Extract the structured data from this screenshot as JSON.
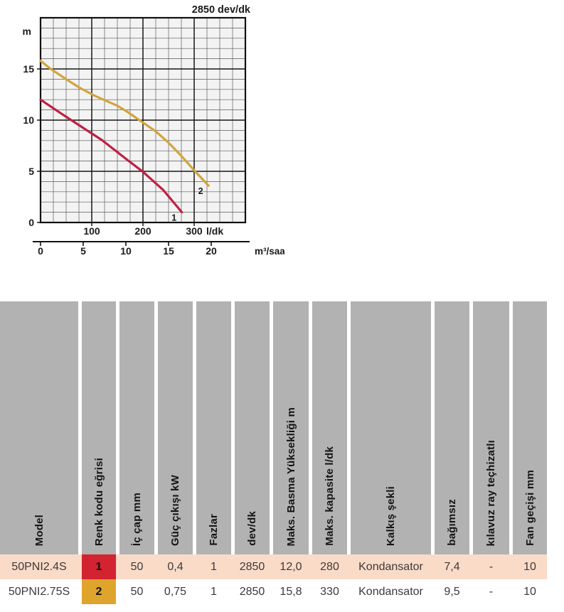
{
  "chart_data": {
    "type": "line",
    "title": "2850 dev/dk",
    "y_axis": {
      "unit": "m",
      "ticks": [
        0,
        5,
        10,
        15
      ],
      "range": [
        0,
        20
      ],
      "minor_step_m": 1,
      "major_step_m": 5
    },
    "x_axis_primary": {
      "unit": "l/dk",
      "ticks": [
        100,
        200,
        300
      ],
      "range_ldk": [
        0,
        400
      ],
      "minor_step_ldk": 25,
      "major_step_ldk": 100
    },
    "x_axis_secondary": {
      "unit": "m³/saat",
      "ticks": [
        0,
        5,
        10,
        15,
        20
      ]
    },
    "grid": true,
    "legend": "curve-end-labels",
    "colors": {
      "plot_bg": "#f3f3f3",
      "minor_grid": "#5a5a5a",
      "major_grid": "#161616",
      "border": "#111111",
      "text": "#1a1a1a"
    },
    "series": [
      {
        "name": "1",
        "color": "#c01f45",
        "points": [
          [
            0,
            12.0
          ],
          [
            40,
            10.65
          ],
          [
            80,
            9.35
          ],
          [
            120,
            8.05
          ],
          [
            170,
            6.1
          ],
          [
            200,
            4.95
          ],
          [
            240,
            3.15
          ],
          [
            276,
            1.0
          ]
        ]
      },
      {
        "name": "2",
        "color": "#d2a43c",
        "points": [
          [
            0,
            15.8
          ],
          [
            20,
            15.0
          ],
          [
            50,
            14.0
          ],
          [
            75,
            13.2
          ],
          [
            105,
            12.4
          ],
          [
            150,
            11.4
          ],
          [
            170,
            10.8
          ],
          [
            196,
            9.9
          ],
          [
            225,
            8.9
          ],
          [
            250,
            7.8
          ],
          [
            275,
            6.5
          ],
          [
            300,
            5.1
          ],
          [
            315,
            4.3
          ],
          [
            328,
            3.6
          ]
        ]
      }
    ]
  },
  "table": {
    "header_bg": "#b2b2b2",
    "columns": [
      {
        "label": "Model"
      },
      {
        "label": "Renk kodu eğrisi"
      },
      {
        "label": "İç çap mm"
      },
      {
        "label": "Güç çıkışı kW"
      },
      {
        "label": "Fazlar"
      },
      {
        "label": "dev/dk"
      },
      {
        "label": "Maks. Basma Yüksekliği m"
      },
      {
        "label": "Maks. kapasite l/dk"
      },
      {
        "label": "Kalkış şekli"
      },
      {
        "label": "bağımsız"
      },
      {
        "label": "kılavuz ray teçhizatlı"
      },
      {
        "label": "Fan geçişi mm"
      }
    ],
    "rows": [
      {
        "row_bg": "#fadbc8",
        "badge_bg": "#d32330",
        "cells": [
          "50PNI2.4S",
          "1",
          "50",
          "0,4",
          "1",
          "2850",
          "12,0",
          "280",
          "Kondansator",
          "7,4",
          "-",
          "10"
        ]
      },
      {
        "row_bg": "#ffffff",
        "badge_bg": "#dfa42c",
        "cells": [
          "50PNI2.75S",
          "2",
          "50",
          "0,75",
          "1",
          "2850",
          "15,8",
          "330",
          "Kondansator",
          "9,5",
          "-",
          "10"
        ]
      }
    ]
  }
}
